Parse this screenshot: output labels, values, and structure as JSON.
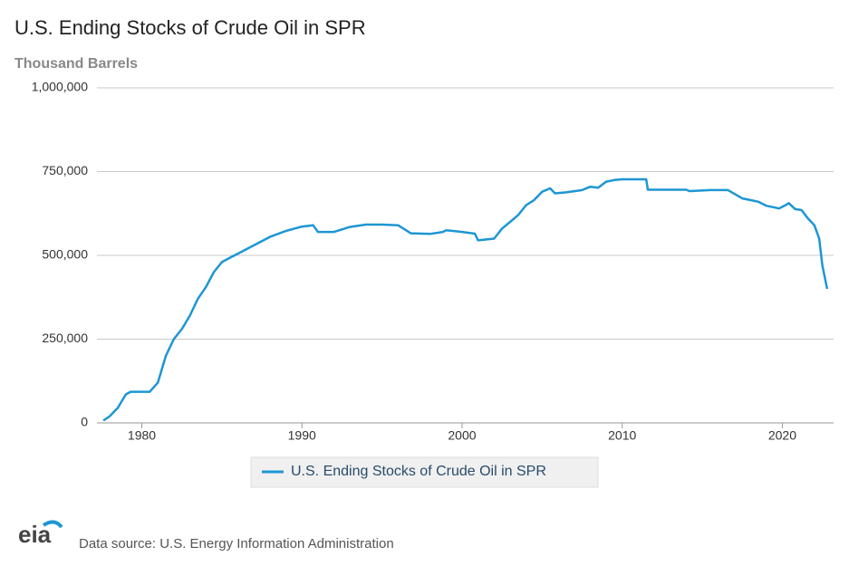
{
  "chart_data": {
    "type": "line",
    "title": "U.S. Ending Stocks of Crude Oil in SPR",
    "y_label": "Thousand Barrels",
    "source": "Data source: U.S. Energy Information Administration",
    "logo": "eia",
    "x": [
      1977.6,
      1978.0,
      1978.5,
      1979.0,
      1979.3,
      1980.5,
      1981.0,
      1981.5,
      1982.0,
      1982.5,
      1983.0,
      1983.5,
      1984.0,
      1984.5,
      1985.0,
      1985.5,
      1986.0,
      1987.0,
      1988.0,
      1989.0,
      1990.0,
      1990.7,
      1991.0,
      1992.0,
      1993.0,
      1994.0,
      1995.0,
      1996.0,
      1996.8,
      1998.0,
      1998.8,
      1999.0,
      2000.0,
      2000.8,
      2001.0,
      2002.0,
      2002.5,
      2003.0,
      2003.5,
      2004.0,
      2004.5,
      2005.0,
      2005.5,
      2005.8,
      2006.5,
      2007.5,
      2008.0,
      2008.5,
      2009.0,
      2009.5,
      2010.0,
      2011.5,
      2011.6,
      2014.0,
      2014.2,
      2015.5,
      2016.6,
      2017.5,
      2018.0,
      2018.5,
      2019.0,
      2019.8,
      2020.2,
      2020.4,
      2020.8,
      2021.2,
      2021.6,
      2022.0,
      2022.3,
      2022.5,
      2022.8
    ],
    "series": [
      {
        "name": "U.S. Ending Stocks of Crude Oil in SPR",
        "color": "#1d96d4",
        "values": [
          7000,
          20000,
          45000,
          85000,
          93000,
          93000,
          120000,
          200000,
          250000,
          280000,
          320000,
          370000,
          405000,
          450000,
          480000,
          493000,
          505000,
          530000,
          555000,
          573000,
          586000,
          590000,
          570000,
          570000,
          585000,
          592000,
          592000,
          590000,
          566000,
          564000,
          570000,
          575000,
          570000,
          565000,
          545000,
          550000,
          580000,
          600000,
          620000,
          650000,
          665000,
          690000,
          700000,
          685000,
          688000,
          695000,
          705000,
          702000,
          720000,
          725000,
          727000,
          727000,
          696000,
          696000,
          692000,
          695000,
          695000,
          670000,
          665000,
          660000,
          648000,
          640000,
          650000,
          656000,
          638000,
          635000,
          610000,
          590000,
          550000,
          470000,
          400000
        ]
      }
    ],
    "xlim": [
      1977.2,
      2023.2
    ],
    "xticks": [
      1980,
      1990,
      2000,
      2010,
      2020
    ],
    "ylim": [
      0,
      1000000
    ],
    "yticks": [
      0,
      {
        "value": 250000,
        "label": "250,000"
      },
      {
        "value": 500000,
        "label": "500,000"
      },
      {
        "value": 750000,
        "label": "750,000"
      },
      {
        "value": 1000000,
        "label": "1,000,000"
      }
    ],
    "grid": true
  }
}
